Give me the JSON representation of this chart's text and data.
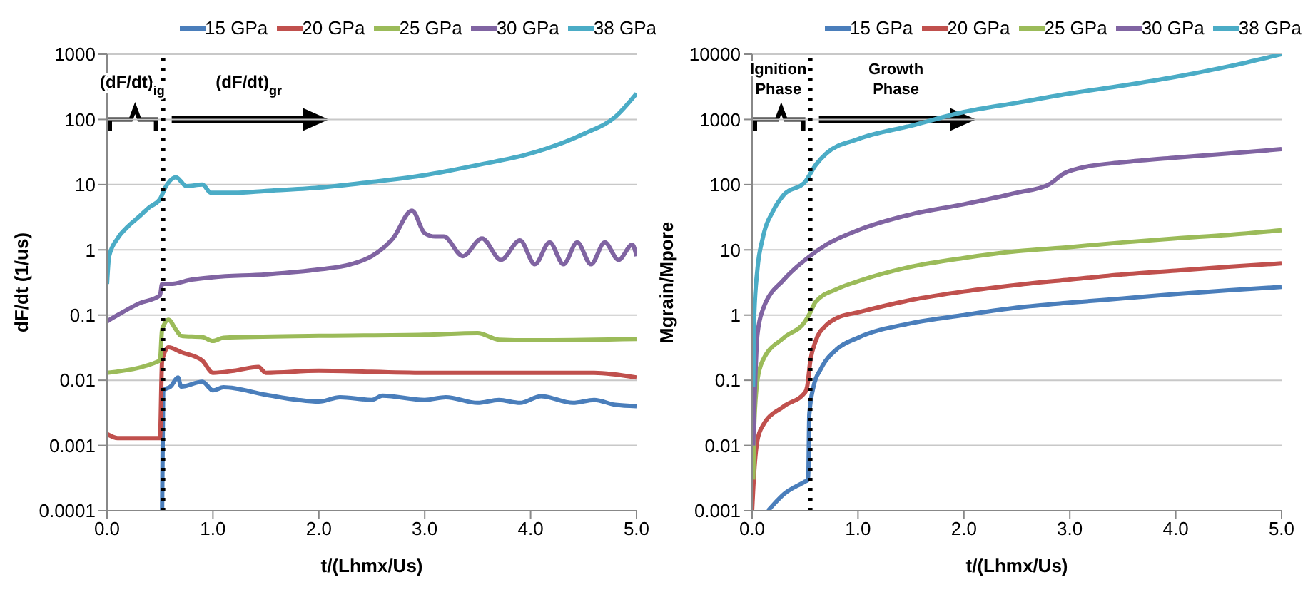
{
  "chart_data": [
    {
      "type": "line",
      "xlabel": "t/(Lhmx/Us)",
      "ylabel": "dF/dt (1/us)",
      "log": "y",
      "grid": "y",
      "legend": "top",
      "marker": "none",
      "line_style": "solid",
      "xlim": [
        0,
        5
      ],
      "xticks": [
        {
          "value": 0,
          "label": "0.0"
        },
        {
          "value": 1,
          "label": "1.0"
        },
        {
          "value": 2,
          "label": "2.0"
        },
        {
          "value": 3,
          "label": "3.0"
        },
        {
          "value": 4,
          "label": "4.0"
        },
        {
          "value": 5,
          "label": "5.0"
        }
      ],
      "ylim": [
        0.0001,
        1000
      ],
      "yticks": [
        0.0001,
        0.001,
        0.01,
        0.1,
        1,
        10,
        100,
        1000
      ],
      "ref_lines": [
        {
          "axis": "x",
          "value": 0.53,
          "color": "#000000",
          "line_style": "dotted"
        }
      ],
      "annotations": [
        "(dF/dt)$_{ig}$",
        "(dF/dt)$_{gr}$"
      ],
      "series": [
        {
          "name": "15 GPa",
          "color": "#4a7ebb",
          "x": [
            0.52,
            0.53,
            0.6,
            0.67,
            0.7,
            0.9,
            1.0,
            1.1,
            1.5,
            1.8,
            2.0,
            2.2,
            2.5,
            2.6,
            3.0,
            3.2,
            3.5,
            3.7,
            3.9,
            4.1,
            4.4,
            4.6,
            4.8,
            5.0
          ],
          "values": [
            0.0001,
            0.007,
            0.008,
            0.011,
            0.008,
            0.0095,
            0.007,
            0.0078,
            0.006,
            0.005,
            0.0047,
            0.0055,
            0.005,
            0.0058,
            0.005,
            0.0055,
            0.0045,
            0.005,
            0.0045,
            0.0057,
            0.0045,
            0.005,
            0.0042,
            0.004
          ]
        },
        {
          "name": "20 GPa",
          "color": "#c0504d",
          "x": [
            0,
            0.1,
            0.5,
            0.52,
            0.58,
            0.7,
            0.9,
            1.0,
            1.2,
            1.43,
            1.5,
            2.0,
            3.0,
            4.0,
            4.6,
            5.0
          ],
          "values": [
            0.0015,
            0.0013,
            0.0013,
            0.02,
            0.032,
            0.027,
            0.02,
            0.013,
            0.014,
            0.016,
            0.013,
            0.014,
            0.013,
            0.013,
            0.013,
            0.011
          ]
        },
        {
          "name": "25 GPa",
          "color": "#9bbb59",
          "x": [
            0,
            0.5,
            0.52,
            0.58,
            0.65,
            0.7,
            0.9,
            1.0,
            1.1,
            2.0,
            3.0,
            3.5,
            3.7,
            4.0,
            5.0
          ],
          "values": [
            0.013,
            0.02,
            0.06,
            0.085,
            0.06,
            0.048,
            0.046,
            0.04,
            0.045,
            0.048,
            0.05,
            0.053,
            0.042,
            0.041,
            0.043
          ]
        },
        {
          "name": "30 GPa",
          "color": "#8064a2",
          "x": [
            0,
            0.1,
            0.3,
            0.5,
            0.52,
            0.6,
            0.8,
            1.0,
            1.5,
            2.0,
            2.3,
            2.5,
            2.7,
            2.88,
            3.0,
            3.1,
            3.18,
            3.36,
            3.54,
            3.72,
            3.9,
            4.04,
            4.18,
            4.31,
            4.44,
            4.57,
            4.7,
            4.83,
            4.96,
            5.0
          ],
          "values": [
            0.08,
            0.1,
            0.15,
            0.2,
            0.3,
            0.3,
            0.35,
            0.38,
            0.42,
            0.5,
            0.6,
            0.8,
            1.5,
            4,
            1.8,
            1.6,
            1.6,
            0.8,
            1.5,
            0.7,
            1.4,
            0.6,
            1.3,
            0.6,
            1.3,
            0.6,
            1.3,
            0.7,
            1.2,
            0.8
          ]
        },
        {
          "name": "38 GPa",
          "color": "#4bacc6",
          "x": [
            0,
            0.02,
            0.1,
            0.2,
            0.3,
            0.4,
            0.5,
            0.55,
            0.65,
            0.75,
            0.9,
            0.98,
            1.2,
            1.5,
            2.0,
            2.5,
            3.0,
            3.2,
            3.5,
            4.0,
            4.5,
            4.8,
            5.0
          ],
          "values": [
            0.3,
            0.8,
            1.5,
            2.3,
            3.2,
            4.5,
            6,
            9,
            13,
            9.5,
            10,
            7.5,
            7.5,
            8,
            9,
            11,
            14,
            16,
            20,
            30,
            60,
            110,
            250
          ]
        }
      ]
    },
    {
      "type": "line",
      "xlabel": "t/(Lhmx/Us)",
      "ylabel": "Mgrain/Mpore",
      "log": "y",
      "grid": "y",
      "legend": "top",
      "marker": "none",
      "line_style": "solid",
      "xlim": [
        0,
        5
      ],
      "xticks": [
        {
          "value": 0,
          "label": "0.0"
        },
        {
          "value": 1,
          "label": "1.0"
        },
        {
          "value": 2,
          "label": "2.0"
        },
        {
          "value": 3,
          "label": "3.0"
        },
        {
          "value": 4,
          "label": "4.0"
        },
        {
          "value": 5,
          "label": "5.0"
        }
      ],
      "ylim": [
        0.001,
        10000
      ],
      "yticks": [
        0.001,
        0.01,
        0.1,
        1,
        10,
        100,
        1000,
        10000
      ],
      "ref_lines": [
        {
          "axis": "x",
          "value": 0.55,
          "color": "#000000",
          "line_style": "dotted"
        }
      ],
      "annotations": [
        "Ignition Phase",
        "Growth Phase"
      ],
      "series": [
        {
          "name": "15 GPa",
          "color": "#4a7ebb",
          "x": [
            0.15,
            0.3,
            0.5,
            0.53,
            0.54,
            0.58,
            0.65,
            0.8,
            1.0,
            1.5,
            2.0,
            2.5,
            3.0,
            3.5,
            4.0,
            4.5,
            5.0
          ],
          "values": [
            0.001,
            0.0018,
            0.0028,
            0.003,
            0.03,
            0.08,
            0.15,
            0.3,
            0.45,
            0.75,
            1.0,
            1.3,
            1.55,
            1.8,
            2.1,
            2.4,
            2.7
          ]
        },
        {
          "name": "20 GPa",
          "color": "#c0504d",
          "x": [
            0,
            0.02,
            0.05,
            0.1,
            0.3,
            0.5,
            0.52,
            0.55,
            0.6,
            0.7,
            0.8,
            1.0,
            1.5,
            2.0,
            2.5,
            3.0,
            3.5,
            4.0,
            4.5,
            5.0
          ],
          "values": [
            0.001,
            0.004,
            0.012,
            0.02,
            0.04,
            0.065,
            0.08,
            0.2,
            0.4,
            0.7,
            0.9,
            1.1,
            1.7,
            2.3,
            2.9,
            3.5,
            4.2,
            4.8,
            5.5,
            6.2
          ]
        },
        {
          "name": "25 GPa",
          "color": "#9bbb59",
          "x": [
            0.01,
            0.02,
            0.05,
            0.1,
            0.3,
            0.5,
            0.55,
            0.6,
            0.8,
            1.0,
            1.5,
            2.0,
            2.5,
            3.0,
            3.5,
            4.0,
            4.5,
            5.0
          ],
          "values": [
            0.003,
            0.02,
            0.1,
            0.2,
            0.45,
            0.8,
            1.1,
            1.6,
            2.5,
            3.3,
            5.5,
            7.5,
            9.5,
            11,
            13,
            15,
            17,
            20
          ]
        },
        {
          "name": "30 GPa",
          "color": "#8064a2",
          "x": [
            0.01,
            0.05,
            0.1,
            0.3,
            0.5,
            0.7,
            1.0,
            1.5,
            2.0,
            2.5,
            2.8,
            2.95,
            3.1,
            3.5,
            4.0,
            4.5,
            5.0
          ],
          "values": [
            0.01,
            0.5,
            1.2,
            3.5,
            7,
            12,
            20,
            35,
            50,
            75,
            100,
            150,
            180,
            220,
            260,
            300,
            350
          ]
        },
        {
          "name": "38 GPa",
          "color": "#4bacc6",
          "x": [
            0.01,
            0.02,
            0.05,
            0.1,
            0.2,
            0.3,
            0.5,
            0.6,
            0.7,
            1.0,
            1.5,
            2.0,
            2.5,
            3.0,
            3.5,
            4.0,
            4.5,
            5.0
          ],
          "values": [
            0.08,
            1,
            5,
            15,
            40,
            70,
            110,
            200,
            300,
            500,
            800,
            1300,
            1800,
            2500,
            3300,
            4500,
            6500,
            10000
          ]
        }
      ]
    }
  ]
}
